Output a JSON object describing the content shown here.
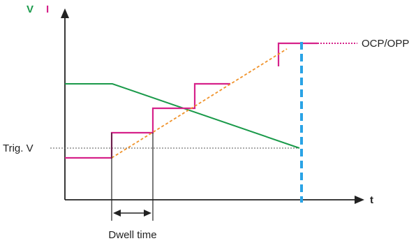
{
  "labels": {
    "voltage_axis": "V",
    "current_axis": "I",
    "time_axis": "t",
    "trigger_voltage": "Trig. V",
    "ocp_opp": "OCP/OPP",
    "dwell_time": "Dwell time"
  },
  "colors": {
    "axis": "#222222",
    "voltage": "#1a9a4a",
    "current": "#d6228a",
    "ramp": "#f0922a",
    "trigger_line": "#555555",
    "trip_line": "#2aa3e6",
    "voltage_label": "#1a9a4a",
    "current_label": "#d6228a"
  },
  "icons": {
    "axis_arrow": "arrow-head-icon",
    "dwell_arrow": "double-arrow-icon"
  }
}
